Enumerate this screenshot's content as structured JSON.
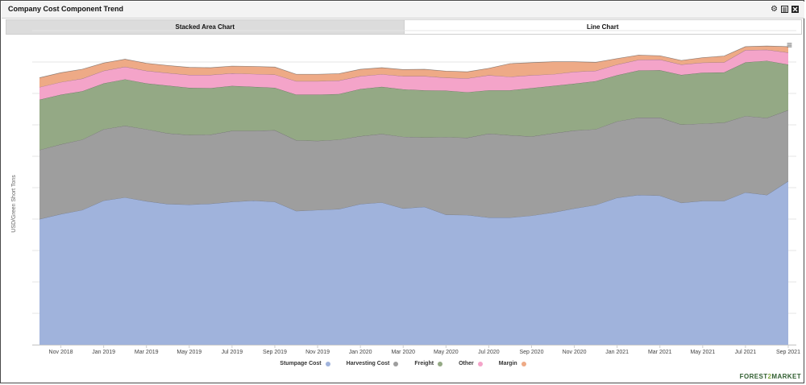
{
  "widget": {
    "title": "Company Cost Component Trend",
    "icons": [
      "gear-icon",
      "export-icon",
      "close-icon"
    ]
  },
  "tabs": [
    {
      "label": "Stacked Area Chart",
      "active": true
    },
    {
      "label": "Line Chart",
      "active": false
    }
  ],
  "logo": {
    "part1": "FOREST",
    "part2": "2",
    "part3": "MARKET"
  },
  "chart_data": {
    "type": "area",
    "stacked": true,
    "title": "",
    "ylabel": "USD/Green Short Tons",
    "xlabel": "",
    "ylim": [
      0,
      100
    ],
    "x_tick_labels": [
      "Nov 2018",
      "Jan 2019",
      "Mar 2019",
      "May 2019",
      "Jul 2019",
      "Sep 2019",
      "Nov 2019",
      "Jan 2020",
      "Mar 2020",
      "May 2020",
      "Jul 2020",
      "Sep 2020",
      "Nov 2020",
      "Jan 2021",
      "Mar 2021",
      "May 2021",
      "Jul 2021",
      "Sep 2021"
    ],
    "categories": [
      "Oct 2018",
      "Nov 2018",
      "Dec 2018",
      "Jan 2019",
      "Feb 2019",
      "Mar 2019",
      "Apr 2019",
      "May 2019",
      "Jun 2019",
      "Jul 2019",
      "Aug 2019",
      "Sep 2019",
      "Oct 2019",
      "Nov 2019",
      "Dec 2019",
      "Jan 2020",
      "Feb 2020",
      "Mar 2020",
      "Apr 2020",
      "May 2020",
      "Jun 2020",
      "Jul 2020",
      "Aug 2020",
      "Sep 2020",
      "Oct 2020",
      "Nov 2020",
      "Dec 2020",
      "Jan 2021",
      "Feb 2021",
      "Mar 2021",
      "Apr 2021",
      "May 2021",
      "Jun 2021",
      "Jul 2021",
      "Aug 2021",
      "Sep 2021"
    ],
    "series": [
      {
        "name": "Stumpage Cost",
        "color": "#a0b3dc",
        "values": [
          40.0,
          41.6,
          42.9,
          45.9,
          46.9,
          45.7,
          44.8,
          44.6,
          44.9,
          45.5,
          45.9,
          45.5,
          42.6,
          42.9,
          43.2,
          44.8,
          45.3,
          43.4,
          43.9,
          41.4,
          41.3,
          40.5,
          40.5,
          41.1,
          42.1,
          43.4,
          44.5,
          46.8,
          47.7,
          47.5,
          45.2,
          45.8,
          45.8,
          48.5,
          47.7,
          52.1
        ]
      },
      {
        "name": "Harvesting Cost",
        "color": "#9e9e9e",
        "values": [
          22.0,
          22.2,
          22.4,
          22.7,
          22.8,
          22.9,
          22.5,
          22.2,
          22.0,
          22.6,
          22.2,
          22.8,
          22.5,
          22.0,
          22.1,
          21.6,
          21.8,
          22.8,
          22.1,
          24.7,
          24.6,
          26.7,
          26.2,
          25.2,
          25.2,
          24.8,
          24.1,
          24.3,
          24.6,
          24.8,
          24.9,
          24.6,
          24.9,
          24.3,
          24.5,
          22.6
        ]
      },
      {
        "name": "Freight",
        "color": "#94a985",
        "values": [
          16.0,
          15.8,
          15.4,
          14.6,
          14.8,
          14.6,
          15.2,
          15.0,
          14.8,
          14.3,
          14.0,
          13.5,
          14.5,
          14.7,
          14.5,
          15.0,
          15.0,
          15.1,
          15.0,
          14.8,
          14.5,
          13.8,
          14.3,
          15.4,
          15.1,
          14.9,
          15.3,
          14.7,
          15.0,
          15.1,
          15.8,
          16.2,
          16.0,
          17.1,
          18.2,
          14.5
        ]
      },
      {
        "name": "Other",
        "color": "#f4a4c9",
        "values": [
          4.0,
          4.0,
          4.0,
          4.0,
          4.0,
          4.0,
          4.0,
          4.1,
          4.2,
          4.0,
          4.1,
          4.2,
          4.3,
          4.3,
          4.3,
          4.1,
          4.0,
          4.2,
          4.5,
          4.1,
          4.4,
          4.8,
          4.3,
          4.1,
          3.7,
          3.8,
          3.3,
          3.4,
          3.4,
          3.4,
          3.3,
          3.2,
          3.2,
          3.9,
          3.5,
          3.8
        ]
      },
      {
        "name": "Margin",
        "color": "#eeaa86",
        "values": [
          3.0,
          3.0,
          3.0,
          2.5,
          2.4,
          2.4,
          2.4,
          2.4,
          2.3,
          2.3,
          2.4,
          2.4,
          2.2,
          2.2,
          2.2,
          2.2,
          2.1,
          2.1,
          2.2,
          2.1,
          2.1,
          2.2,
          4.2,
          4.0,
          4.0,
          3.2,
          2.7,
          1.9,
          1.5,
          1.2,
          1.3,
          1.6,
          2.0,
          1.1,
          1.2,
          1.9
        ]
      }
    ]
  }
}
